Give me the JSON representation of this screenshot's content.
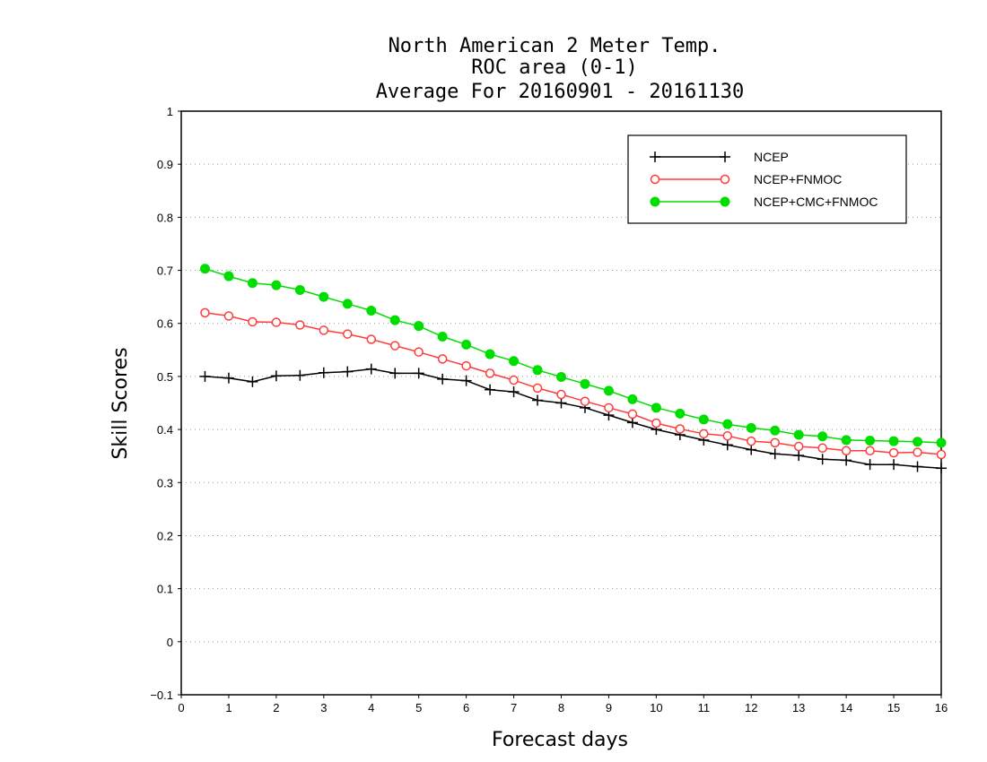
{
  "chart_data": {
    "type": "line",
    "title_lines": [
      "North American 2 Meter Temp.",
      "ROC area (0-1)",
      "Average For 20160901 - 20161130"
    ],
    "xlabel": "Forecast days",
    "ylabel": "Skill Scores",
    "xlim": [
      0,
      16
    ],
    "ylim": [
      -0.1,
      1
    ],
    "x_ticks": [
      "0",
      "1",
      "2",
      "3",
      "4",
      "5",
      "6",
      "7",
      "8",
      "9",
      "10",
      "11",
      "12",
      "13",
      "14",
      "15",
      "16"
    ],
    "y_ticks": [
      "−0.1",
      "0",
      "0.1",
      "0.2",
      "0.3",
      "0.4",
      "0.5",
      "0.6",
      "0.7",
      "0.8",
      "0.9",
      "1"
    ],
    "grid": "horizontal dotted",
    "legend_position": "top-right",
    "x": [
      0.5,
      1,
      1.5,
      2,
      2.5,
      3,
      3.5,
      4,
      4.5,
      5,
      5.5,
      6,
      6.5,
      7,
      7.5,
      8,
      8.5,
      9,
      9.5,
      10,
      10.5,
      11,
      11.5,
      12,
      12.5,
      13,
      13.5,
      14,
      14.5,
      15,
      15.5,
      16
    ],
    "series": [
      {
        "name": "NCEP",
        "color": "#000000",
        "marker": "plus",
        "values": [
          0.5,
          0.497,
          0.49,
          0.501,
          0.502,
          0.507,
          0.509,
          0.514,
          0.506,
          0.506,
          0.495,
          0.492,
          0.475,
          0.471,
          0.455,
          0.45,
          0.441,
          0.427,
          0.413,
          0.4,
          0.39,
          0.38,
          0.371,
          0.362,
          0.354,
          0.351,
          0.344,
          0.342,
          0.334,
          0.334,
          0.33,
          0.327
        ]
      },
      {
        "name": "NCEP+FNMOC",
        "color": "#ff3b3b",
        "marker": "open-circle",
        "values": [
          0.62,
          0.614,
          0.603,
          0.602,
          0.597,
          0.587,
          0.58,
          0.57,
          0.558,
          0.546,
          0.533,
          0.52,
          0.506,
          0.493,
          0.478,
          0.466,
          0.453,
          0.441,
          0.429,
          0.412,
          0.401,
          0.392,
          0.388,
          0.378,
          0.375,
          0.368,
          0.365,
          0.36,
          0.36,
          0.356,
          0.357,
          0.353
        ]
      },
      {
        "name": "NCEP+CMC+FNMOC",
        "color": "#00dd00",
        "marker": "filled-circle",
        "values": [
          0.703,
          0.689,
          0.676,
          0.672,
          0.663,
          0.65,
          0.637,
          0.624,
          0.606,
          0.595,
          0.575,
          0.56,
          0.542,
          0.529,
          0.512,
          0.499,
          0.486,
          0.473,
          0.457,
          0.441,
          0.43,
          0.419,
          0.41,
          0.403,
          0.398,
          0.39,
          0.387,
          0.38,
          0.379,
          0.378,
          0.377,
          0.375
        ]
      }
    ]
  }
}
